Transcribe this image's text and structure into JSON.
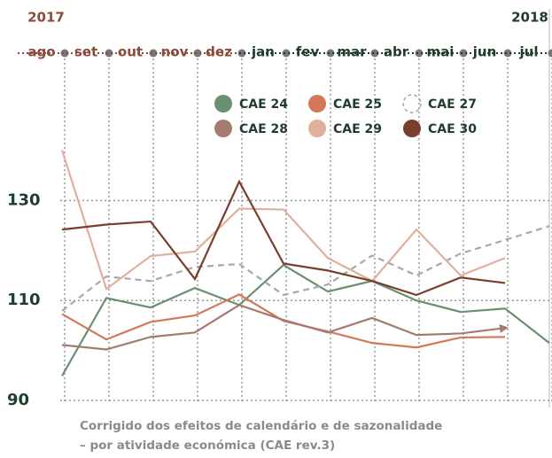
{
  "chart_data": {
    "type": "line",
    "years": [
      {
        "label": "2017",
        "color": "#8b4a3a"
      },
      {
        "label": "2018",
        "color": "#1f3d2b"
      }
    ],
    "categories": [
      "ago",
      "set",
      "out",
      "nov",
      "dez",
      "jan",
      "fev",
      "mar",
      "abr",
      "mai",
      "jun",
      "jul"
    ],
    "category_colors": [
      "#8b4a3a",
      "#8b4a3a",
      "#8b4a3a",
      "#8b4a3a",
      "#8b4a3a",
      "#1f3d2b",
      "#1f3d2b",
      "#1f3d2b",
      "#1f3d2b",
      "#1f3d2b",
      "#1f3d2b",
      "#1f3d2b"
    ],
    "series": [
      {
        "name": "CAE 24",
        "color": "#6b8f71",
        "values": [
          94.9,
          110.5,
          108.6,
          112.5,
          109.1,
          117.1,
          111.8,
          113.9,
          110.0,
          107.7,
          108.4,
          101.5
        ]
      },
      {
        "name": "CAE 25",
        "color": "#d4785a",
        "values": [
          107.3,
          102.2,
          105.7,
          107.0,
          111.2,
          105.9,
          103.8,
          101.5,
          100.6,
          102.6,
          102.7,
          null
        ]
      },
      {
        "name": "CAE 27",
        "color": "#a8a8a8",
        "dashed": true,
        "values": [
          107.9,
          114.8,
          113.9,
          116.7,
          117.3,
          111.1,
          113.2,
          119.0,
          115.0,
          119.4,
          122.1,
          124.9
        ]
      },
      {
        "name": "CAE 28",
        "color": "#a57b70",
        "arrow": true,
        "values": [
          101.1,
          100.2,
          102.7,
          103.6,
          109.1,
          106.1,
          103.6,
          106.5,
          103.1,
          103.4,
          104.5,
          null
        ]
      },
      {
        "name": "CAE 29",
        "color": "#e0b09c",
        "values": [
          140.1,
          112.3,
          118.9,
          119.8,
          128.4,
          128.2,
          118.5,
          113.9,
          124.2,
          115.0,
          118.5,
          null
        ]
      },
      {
        "name": "CAE 30",
        "color": "#7a3e2c",
        "values": [
          124.2,
          125.2,
          125.8,
          114.3,
          133.8,
          117.4,
          116.0,
          113.9,
          111.1,
          114.6,
          113.5,
          null
        ]
      }
    ],
    "ylim": [
      90,
      140
    ],
    "yticks": [
      90,
      110,
      130
    ],
    "grid": true,
    "caption": [
      "Corrigido dos efeitos de calendário e de sazonalidade",
      "– por atividade económica (CAE rev.3)"
    ]
  }
}
